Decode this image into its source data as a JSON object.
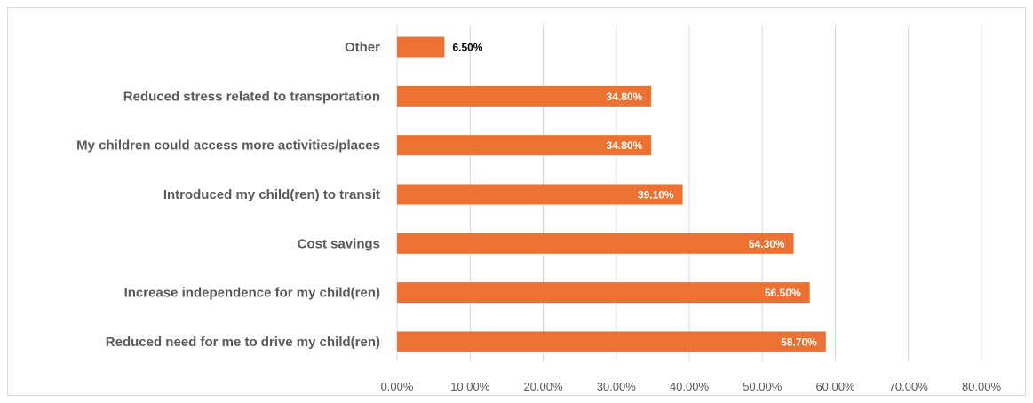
{
  "chart_data": {
    "type": "bar",
    "orientation": "horizontal",
    "categories": [
      "Other",
      "Reduced stress related to transportation",
      "My children could access more activities/places",
      "Introduced my child(ren) to transit",
      "Cost savings",
      "Increase independence for my child(ren)",
      "Reduced need for me to drive my child(ren)"
    ],
    "values": [
      6.5,
      34.8,
      34.8,
      39.1,
      54.3,
      56.5,
      58.7
    ],
    "data_labels": [
      "6.50%",
      "34.80%",
      "34.80%",
      "39.10%",
      "54.30%",
      "56.50%",
      "58.70%"
    ],
    "x_ticks": [
      "0.00%",
      "10.00%",
      "20.00%",
      "30.00%",
      "40.00%",
      "50.00%",
      "60.00%",
      "70.00%",
      "80.00%"
    ],
    "xlim": [
      0,
      80
    ],
    "title": "",
    "xlabel": "",
    "ylabel": "",
    "grid": "vertical",
    "legend": "none",
    "bar_color": "#ED7232"
  }
}
